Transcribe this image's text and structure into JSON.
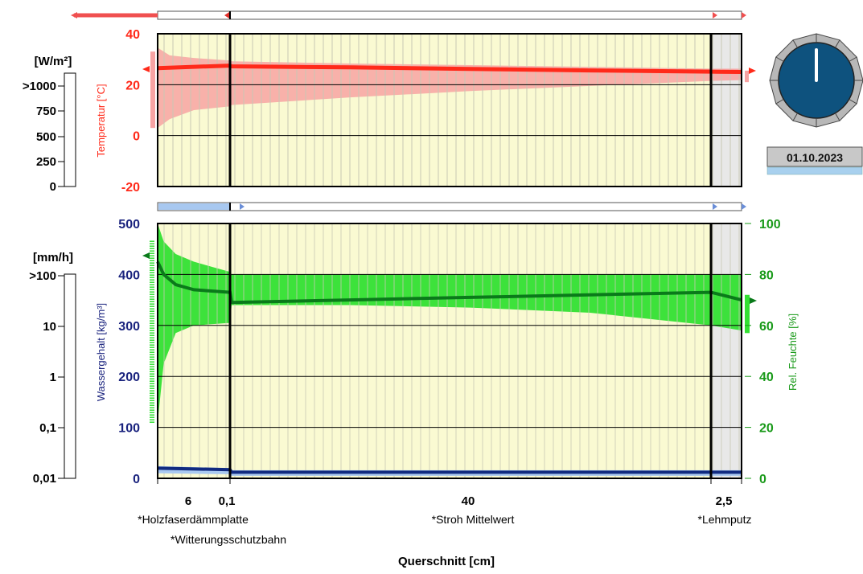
{
  "date": "01.10.2023",
  "colors": {
    "plot_bg": "#fafad2",
    "temp": "#ff2a1a",
    "temp_band": "#f7a3a3",
    "rh_band": "#33e033",
    "rh_line": "#0a7a1a",
    "rh_axis": "#1a9a1a",
    "water_line": "#102a80",
    "water_band": "#a8c8f0",
    "water_axis": "#1a237e",
    "clock_face": "#0e527e"
  },
  "radiation_panel": {
    "unit": "[W/m²]",
    "ticks": [
      ">1000",
      "750",
      "500",
      "250",
      "0"
    ]
  },
  "rain_panel": {
    "unit": "[mm/h]",
    "ticks": [
      ">100",
      "10",
      "1",
      "0,1",
      "0,01"
    ]
  },
  "chart_data": [
    {
      "type": "line",
      "ylabel": "Temperatur [°C]",
      "ylim": [
        -20,
        40
      ],
      "yticks": [
        "40",
        "20",
        "0",
        "-20"
      ],
      "x_positions_cm": [
        0,
        6,
        6.1,
        46.1,
        48.6
      ],
      "series": [
        {
          "x": [
            0,
            6,
            6.1,
            16,
            26,
            36,
            46.1,
            48.6
          ],
          "values": [
            26.5,
            27.5,
            27.2,
            26.8,
            26.2,
            25.6,
            25.1,
            25.0
          ]
        }
      ],
      "band": {
        "x": [
          0,
          1,
          3,
          6,
          6.1,
          16,
          26,
          36,
          46.1,
          48.6
        ],
        "max": [
          34.5,
          31.5,
          30.5,
          29.5,
          29.2,
          28.3,
          27.7,
          27.0,
          26.3,
          26.3
        ],
        "min": [
          3.0,
          6.5,
          10.0,
          11.5,
          12.0,
          15.0,
          17.5,
          19.5,
          21.5,
          21.8
        ]
      }
    },
    {
      "type": "line",
      "xlabel": "Querschnitt [cm]",
      "y_left_label": "Wassergehalt [kg/m³]",
      "y_left_lim": [
        0,
        500
      ],
      "y_left_ticks": [
        "500",
        "400",
        "300",
        "200",
        "100",
        "0"
      ],
      "y_right_label": "Rel. Feuchte [%]",
      "y_right_lim": [
        0,
        100
      ],
      "y_right_ticks": [
        "100",
        "80",
        "60",
        "40",
        "20",
        "0"
      ],
      "x_tick_labels": [
        "6",
        "0,1",
        "40",
        "2,5"
      ],
      "layers": [
        "*Holzfaserdämmplatte",
        "*Witterungsschutzbahn",
        "*Stroh Mittelwert",
        "*Lehmputz"
      ],
      "rh_series": {
        "x": [
          0,
          0.5,
          1.5,
          3,
          6,
          6.1,
          16,
          26,
          36,
          46.1,
          48.6
        ],
        "values": [
          85,
          80,
          76,
          74,
          73,
          69,
          70,
          71,
          72,
          73,
          70
        ]
      },
      "rh_band": {
        "x": [
          0,
          0.5,
          1.5,
          3,
          6,
          6.1,
          16,
          26,
          36,
          46.1,
          48.6
        ],
        "max": [
          100,
          93,
          88,
          85,
          81,
          80,
          80,
          80,
          80,
          80,
          80
        ],
        "min": [
          22,
          45,
          57,
          60,
          61,
          68,
          68,
          67,
          65,
          60,
          58
        ]
      },
      "water_series": {
        "x": [
          0,
          6,
          6.1,
          48.6
        ],
        "values": [
          20,
          17,
          12,
          12
        ]
      },
      "water_band": {
        "x": [
          0,
          6,
          6.1,
          48.6
        ],
        "max": [
          24,
          20,
          16,
          16
        ],
        "min": [
          10,
          8,
          5,
          5
        ]
      }
    }
  ]
}
